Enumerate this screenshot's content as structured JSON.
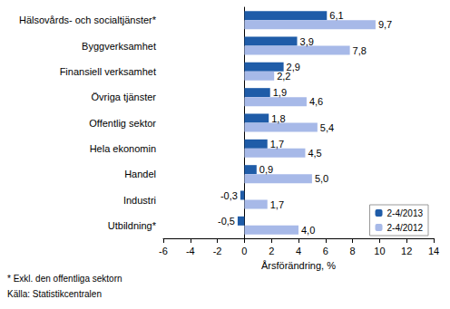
{
  "chart_data": {
    "type": "bar",
    "orientation": "horizontal",
    "categories": [
      "Hälsovårds- och socialtjänster*",
      "Byggverksamhet",
      "Finansiell verksamhet",
      "Övriga tjänster",
      "Offentlig sektor",
      "Hela ekonomin",
      "Handel",
      "Industri",
      "Utbildning*"
    ],
    "series": [
      {
        "name": "2-4/2013",
        "color": "#1f5ca8",
        "values": [
          6.1,
          3.9,
          2.9,
          1.9,
          1.8,
          1.7,
          0.9,
          -0.3,
          -0.5
        ],
        "value_labels": [
          "6,1",
          "3,9",
          "2,9",
          "1,9",
          "1,8",
          "1,7",
          "0,9",
          "-0,3",
          "-0,5"
        ]
      },
      {
        "name": "2-4/2012",
        "color": "#a7b9e8",
        "values": [
          9.7,
          7.8,
          2.2,
          4.6,
          5.4,
          4.5,
          5.0,
          1.7,
          4.0
        ],
        "value_labels": [
          "9,7",
          "7,8",
          "2,2",
          "4,6",
          "5,4",
          "4,5",
          "5,0",
          "1,7",
          "4,0"
        ]
      }
    ],
    "x_label": "Årsförändring, %",
    "xlim": [
      -6,
      14
    ],
    "xticks": [
      -6,
      -4,
      -2,
      0,
      2,
      4,
      6,
      8,
      10,
      12,
      14
    ],
    "grid": false,
    "legend": "lower right",
    "data_labels": true,
    "annotations": [
      "* Exkl. den offentliga sektorn",
      "Källa: Statistikcentralen"
    ]
  }
}
